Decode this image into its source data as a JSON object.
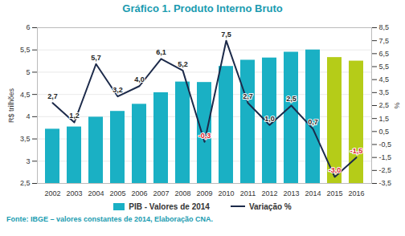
{
  "chart_data": {
    "type": "bar",
    "title": "Gráfico 1. Produto Interno Bruto",
    "caption": "Fonte: IBGE – valores constantes de 2014, Elaboração CNA.",
    "ylabel": "R$ trilhões",
    "y2label": "%",
    "categories": [
      "2002",
      "2003",
      "2004",
      "2005",
      "2006",
      "2007",
      "2008",
      "2009",
      "2010",
      "2011",
      "2012",
      "2013",
      "2014",
      "2015",
      "2016"
    ],
    "ylim": [
      2.5,
      6
    ],
    "yticks": [
      {
        "value": 2.5,
        "label": "2,5"
      },
      3,
      {
        "value": 3.5,
        "label": "3,5"
      },
      4,
      {
        "value": 4.5,
        "label": "4,5"
      },
      5,
      {
        "value": 5.5,
        "label": "5,5"
      },
      6
    ],
    "y2lim": [
      -3.5,
      8.5
    ],
    "y2ticks": [
      {
        "value": -3.5,
        "label": "-3,5"
      },
      {
        "value": -2.5,
        "label": "-2,5"
      },
      {
        "value": -1.5,
        "label": "-1,5"
      },
      {
        "value": -0.5,
        "label": "-0,5"
      },
      {
        "value": 0.5,
        "label": "0,5"
      },
      {
        "value": 1.5,
        "label": "1,5"
      },
      {
        "value": 2.5,
        "label": "2,5"
      },
      {
        "value": 3.5,
        "label": "3,5"
      },
      {
        "value": 4.5,
        "label": "4,5"
      },
      {
        "value": 5.5,
        "label": "5,5"
      },
      {
        "value": 6.5,
        "label": "6,5"
      },
      {
        "value": 7.5,
        "label": "7,5"
      },
      {
        "value": 8.5,
        "label": "8,5"
      }
    ],
    "grid": true,
    "legend": "bottom",
    "series": [
      {
        "name": "PIB - Valores de 2014",
        "type": "bar",
        "colors": [
          "#1ab0c4",
          "#1ab0c4",
          "#1ab0c4",
          "#1ab0c4",
          "#1ab0c4",
          "#1ab0c4",
          "#1ab0c4",
          "#1ab0c4",
          "#1ab0c4",
          "#1ab0c4",
          "#1ab0c4",
          "#1ab0c4",
          "#1ab0c4",
          "#b5cc18",
          "#b5cc18"
        ],
        "values": [
          3.72,
          3.77,
          3.99,
          4.12,
          4.28,
          4.54,
          4.78,
          4.77,
          5.13,
          5.27,
          5.32,
          5.45,
          5.5,
          5.33,
          5.25
        ]
      },
      {
        "name": "Variação %",
        "type": "line",
        "axis": "y2",
        "color": "#1c2a4a",
        "data_labels": true,
        "values": [
          2.7,
          1.2,
          5.7,
          3.2,
          4.0,
          6.1,
          5.2,
          -0.3,
          7.5,
          2.7,
          1.0,
          2.5,
          0.7,
          -3.0,
          -1.5
        ],
        "value_labels": [
          "2,7",
          "1,2",
          "5,7",
          "3,2",
          "4,0",
          "6,1",
          "5,2",
          "-0,3",
          "7,5",
          "2,7",
          "1,0",
          "2,5",
          "0,7",
          "-3,0",
          "-1,5"
        ]
      }
    ]
  }
}
